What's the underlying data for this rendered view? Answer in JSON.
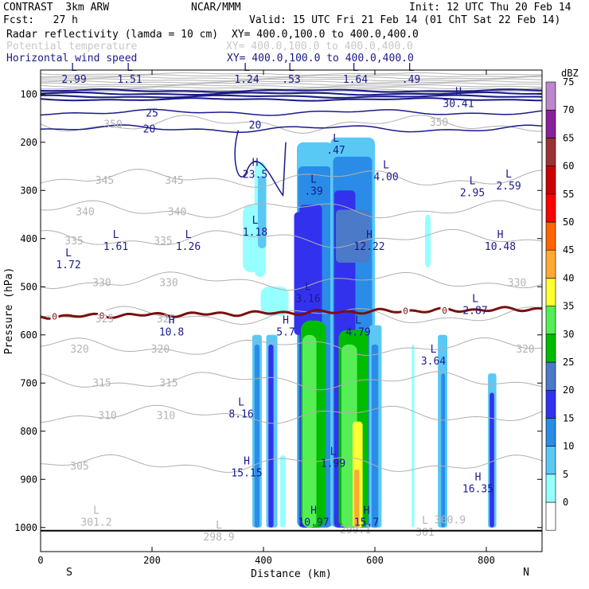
{
  "header": {
    "model": "CONTRAST  3km ARW",
    "org": "NCAR/MMM",
    "init": "Init: 12 UTC Thu 20 Feb 14",
    "fcst": "Fcst:   27 h",
    "valid": "Valid: 15 UTC Fri 21 Feb 14 (01 ChT Sat 22 Feb 14)",
    "fields": [
      {
        "name": "Radar reflectivity (lamda = 10 cm)",
        "xy": "XY= 400.0,100.0 to 400.0,400.0",
        "style": "black"
      },
      {
        "name": "Potential temperature",
        "xy": "XY= 400.0,100.0 to 400.0,400.0",
        "style": "gray"
      },
      {
        "name": "Horizontal wind speed",
        "xy": "XY= 400.0,100.0 to 400.0,400.0",
        "style": "navy"
      }
    ]
  },
  "chart_data": {
    "type": "cross-section",
    "xlabel": "Distance (km)",
    "ylabel": "Pressure (hPa)",
    "xlim": [
      0,
      900
    ],
    "ylim": [
      1050,
      50
    ],
    "x_ticks": [
      0,
      200,
      400,
      600,
      800
    ],
    "y_ticks": [
      100,
      200,
      300,
      400,
      500,
      600,
      700,
      800,
      900,
      1000
    ],
    "x_end_labels": {
      "left": "S",
      "right": "N"
    },
    "colorbar": {
      "unit": "dBZ",
      "levels": [
        0,
        5,
        10,
        15,
        20,
        25,
        30,
        35,
        40,
        45,
        50,
        55,
        60,
        65,
        70,
        75
      ],
      "colors": [
        "#ffffff",
        "#96ffff",
        "#5ac8f5",
        "#2a8ce6",
        "#3232ee",
        "#4a7ac8",
        "#00bb00",
        "#55ee55",
        "#ffff33",
        "#ffaa33",
        "#ff6600",
        "#ff0000",
        "#cc0000",
        "#993333",
        "#882299",
        "#bb88cc"
      ]
    },
    "theta_labels": [
      {
        "x": 130,
        "p": 163,
        "v": "350"
      },
      {
        "x": 715,
        "p": 159,
        "v": "350"
      },
      {
        "x": 115,
        "p": 280,
        "v": "345"
      },
      {
        "x": 240,
        "p": 280,
        "v": "345"
      },
      {
        "x": 80,
        "p": 345,
        "v": "340"
      },
      {
        "x": 245,
        "p": 345,
        "v": "340"
      },
      {
        "x": 60,
        "p": 405,
        "v": "335"
      },
      {
        "x": 220,
        "p": 405,
        "v": "335"
      },
      {
        "x": 110,
        "p": 492,
        "v": "330"
      },
      {
        "x": 230,
        "p": 492,
        "v": "330"
      },
      {
        "x": 855,
        "p": 492,
        "v": "330"
      },
      {
        "x": 115,
        "p": 567,
        "v": "325"
      },
      {
        "x": 225,
        "p": 567,
        "v": "325"
      },
      {
        "x": 70,
        "p": 630,
        "v": "320"
      },
      {
        "x": 215,
        "p": 630,
        "v": "320"
      },
      {
        "x": 870,
        "p": 630,
        "v": "320"
      },
      {
        "x": 110,
        "p": 700,
        "v": "315"
      },
      {
        "x": 230,
        "p": 700,
        "v": "315"
      },
      {
        "x": 120,
        "p": 768,
        "v": "310"
      },
      {
        "x": 225,
        "p": 768,
        "v": "310"
      },
      {
        "x": 70,
        "p": 873,
        "v": "305"
      },
      {
        "x": 565,
        "p": 1005,
        "v": "299.1"
      },
      {
        "x": 735,
        "p": 985,
        "v": "300.9"
      }
    ],
    "theta_levels": [
      350,
      345,
      340,
      335,
      330,
      325,
      320,
      315,
      310,
      305
    ],
    "zero_line_label": "0",
    "wind_labels": [
      {
        "x": 200,
        "p": 140,
        "v": "25"
      },
      {
        "x": 195,
        "p": 173,
        "v": "20"
      },
      {
        "x": 385,
        "p": 165,
        "v": "20"
      }
    ],
    "extrema": [
      {
        "x": 60,
        "p": 65,
        "t": "L",
        "v": "2.99",
        "c": "navy"
      },
      {
        "x": 160,
        "p": 65,
        "t": "L",
        "v": "1.51",
        "c": "navy"
      },
      {
        "x": 370,
        "p": 65,
        "t": "L",
        "v": "1.24",
        "c": "navy"
      },
      {
        "x": 450,
        "p": 65,
        "t": "L",
        "v": ".53",
        "c": "navy"
      },
      {
        "x": 565,
        "p": 65,
        "t": "L",
        "v": "1.64",
        "c": "navy"
      },
      {
        "x": 665,
        "p": 65,
        "t": "L",
        "v": ".49",
        "c": "navy"
      },
      {
        "x": 750,
        "p": 115,
        "t": "H",
        "v": "30.41",
        "c": "navy"
      },
      {
        "x": 385,
        "p": 262,
        "t": "H",
        "v": "23.5",
        "c": "navy"
      },
      {
        "x": 530,
        "p": 212,
        "t": "L",
        "v": ".47",
        "c": "navy"
      },
      {
        "x": 620,
        "p": 267,
        "t": "L",
        "v": "4.00",
        "c": "navy"
      },
      {
        "x": 490,
        "p": 297,
        "t": "L",
        "v": ".39",
        "c": "navy"
      },
      {
        "x": 775,
        "p": 300,
        "t": "L",
        "v": "2.95",
        "c": "navy"
      },
      {
        "x": 840,
        "p": 286,
        "t": "L",
        "v": "2.59",
        "c": "navy"
      },
      {
        "x": 385,
        "p": 382,
        "t": "L",
        "v": "1.18",
        "c": "navy"
      },
      {
        "x": 135,
        "p": 412,
        "t": "L",
        "v": "1.61",
        "c": "navy"
      },
      {
        "x": 265,
        "p": 412,
        "t": "L",
        "v": "1.26",
        "c": "navy"
      },
      {
        "x": 50,
        "p": 450,
        "t": "L",
        "v": "1.72",
        "c": "navy"
      },
      {
        "x": 590,
        "p": 412,
        "t": "H",
        "v": "12.22",
        "c": "navy"
      },
      {
        "x": 825,
        "p": 412,
        "t": "H",
        "v": "10.48",
        "c": "navy"
      },
      {
        "x": 480,
        "p": 520,
        "t": "L",
        "v": "3.16",
        "c": "navy"
      },
      {
        "x": 780,
        "p": 545,
        "t": "L",
        "v": "2.87",
        "c": "navy"
      },
      {
        "x": 235,
        "p": 590,
        "t": "H",
        "v": "10.8",
        "c": "navy"
      },
      {
        "x": 440,
        "p": 590,
        "t": "H",
        "v": "5.7",
        "c": "navy"
      },
      {
        "x": 570,
        "p": 590,
        "t": "L",
        "v": "4.79",
        "c": "navy"
      },
      {
        "x": 705,
        "p": 650,
        "t": "L",
        "v": "3.64",
        "c": "navy"
      },
      {
        "x": 360,
        "p": 760,
        "t": "L",
        "v": "8.16",
        "c": "navy"
      },
      {
        "x": 525,
        "p": 862,
        "t": "L",
        "v": "1.99",
        "c": "navy"
      },
      {
        "x": 370,
        "p": 882,
        "t": "H",
        "v": "15.15",
        "c": "navy"
      },
      {
        "x": 785,
        "p": 915,
        "t": "H",
        "v": "16.35",
        "c": "navy"
      },
      {
        "x": 490,
        "p": 985,
        "t": "H",
        "v": "10.97",
        "c": "navy"
      },
      {
        "x": 585,
        "p": 985,
        "t": "H",
        "v": "15.7",
        "c": "navy"
      },
      {
        "x": 100,
        "p": 985,
        "t": "L",
        "v": "301.2",
        "c": "gray"
      },
      {
        "x": 320,
        "p": 1015,
        "t": "L",
        "v": "298.9",
        "c": "gray"
      },
      {
        "x": 690,
        "p": 1005,
        "t": "L",
        "v": "301",
        "c": "gray"
      }
    ]
  }
}
